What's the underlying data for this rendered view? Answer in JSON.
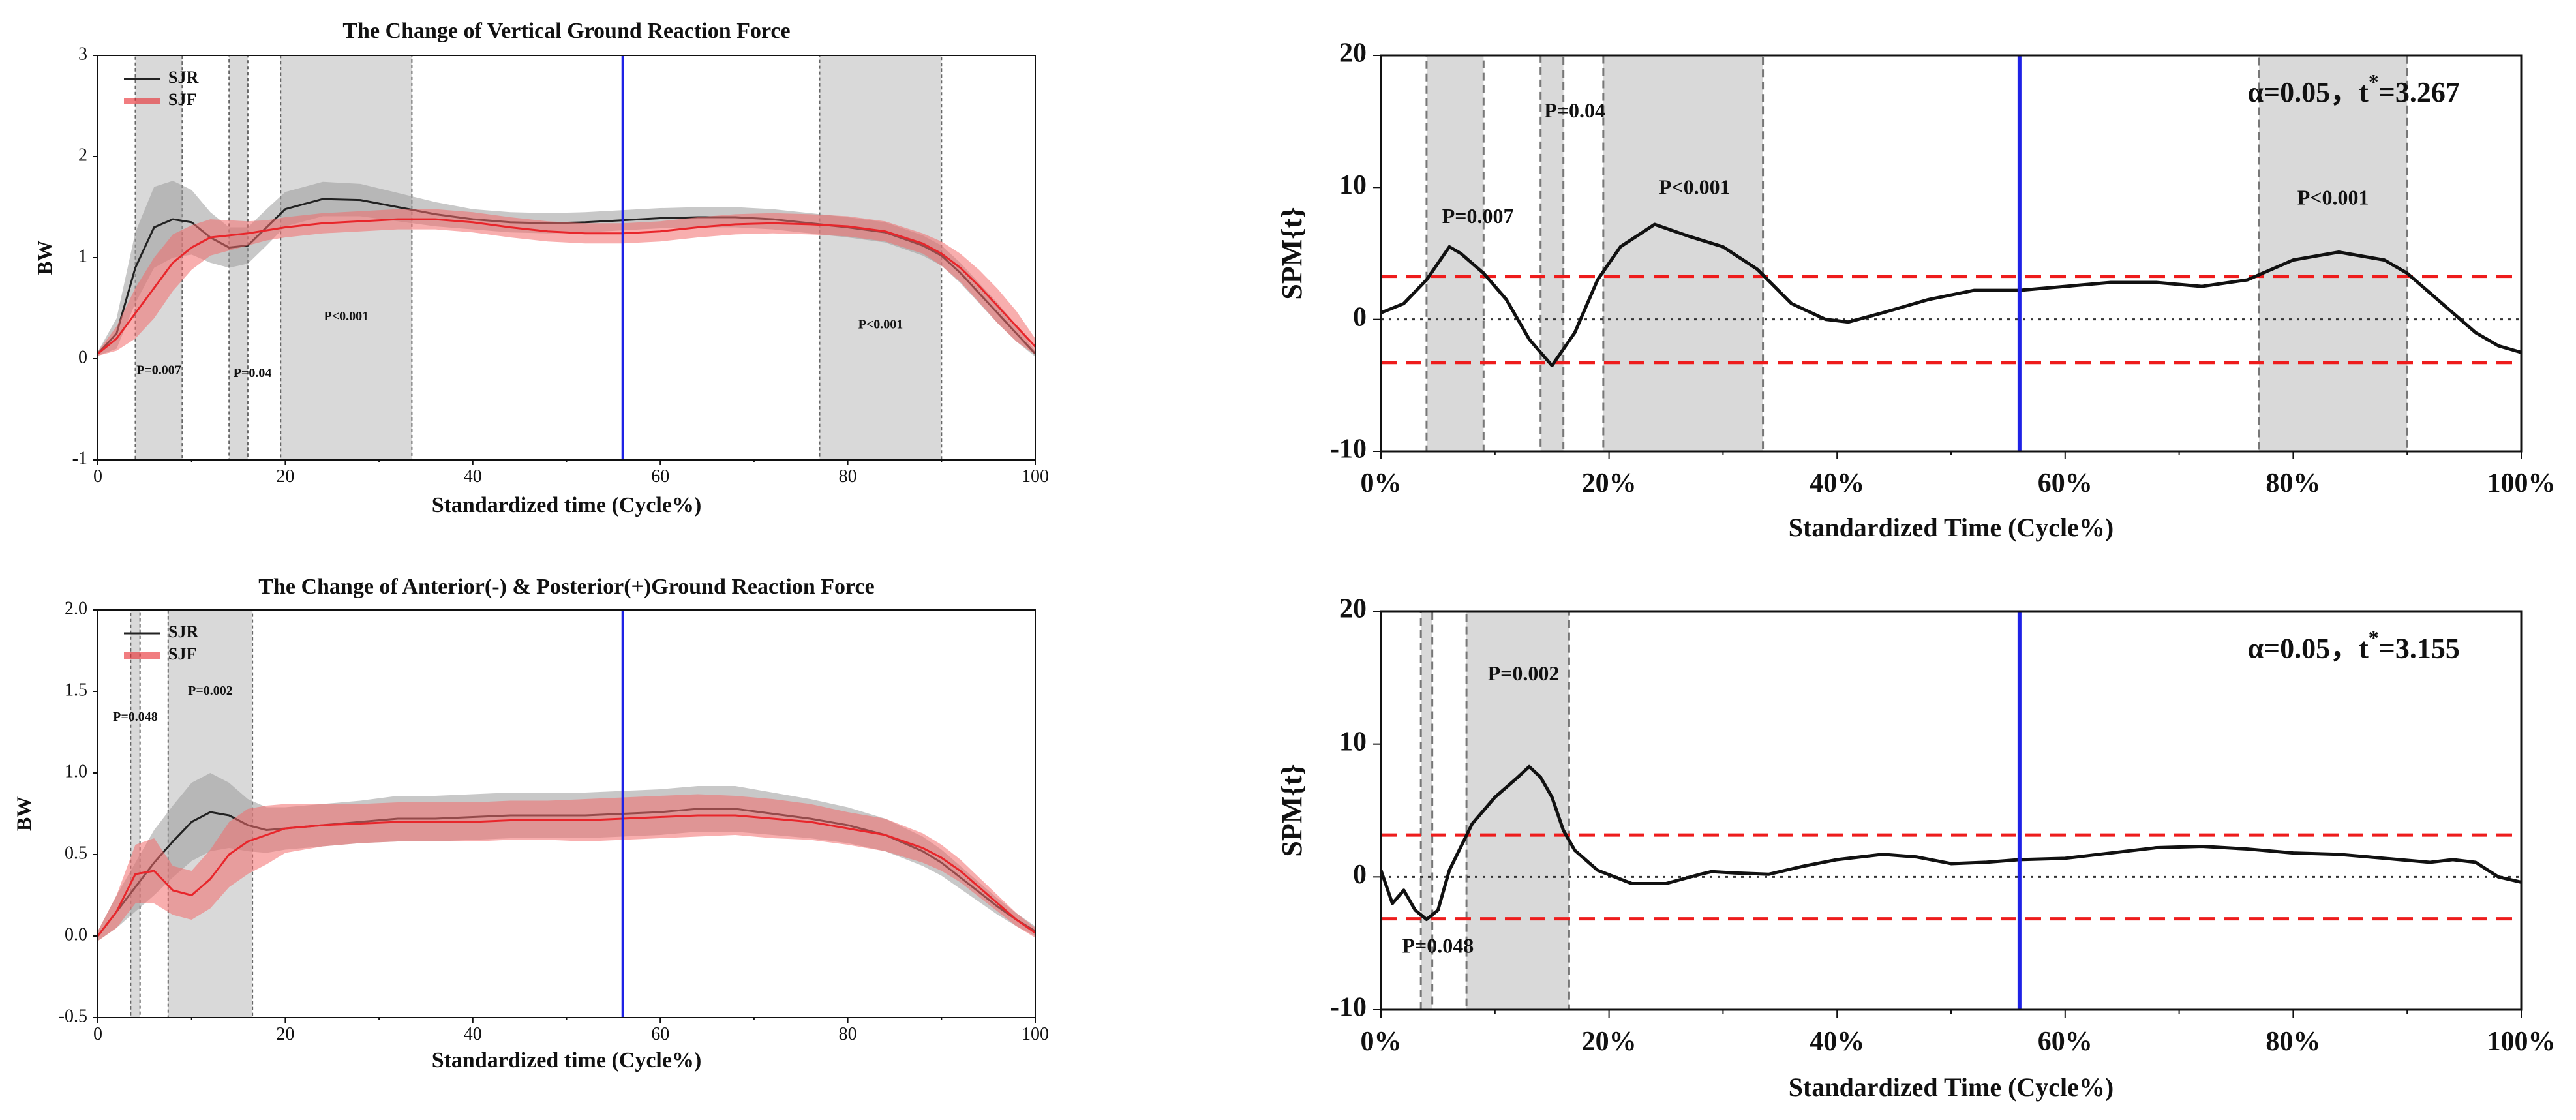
{
  "colors": {
    "sjr": "#222222",
    "sjr_band": "#9a9a9a",
    "sjf": "#e8262b",
    "sjf_band": "#f26b6b",
    "region": "#d9d9d9",
    "marker": "#1e22e6",
    "threshold": "#ee1c1c",
    "spm": "#111111"
  },
  "chart_data": [
    {
      "id": "vgrf",
      "type": "line",
      "title": "The Change of Vertical  Ground Reaction Force",
      "xlabel": "Standardized time (Cycle%)",
      "ylabel": "BW",
      "xlim": [
        0,
        100
      ],
      "ylim": [
        -1,
        3
      ],
      "xticks": [
        0,
        20,
        40,
        60,
        80,
        100
      ],
      "xtick_labels": [
        "0",
        "20",
        "40",
        "60",
        "80",
        "100"
      ],
      "yticks": [
        -1,
        0,
        1,
        2,
        3
      ],
      "ytick_labels": [
        "-1",
        "0",
        "1",
        "2",
        "3"
      ],
      "legend": {
        "position": "top-left",
        "entries": [
          "SJR",
          "SJF"
        ]
      },
      "marker_x": 56,
      "regions": [
        {
          "x0": 4,
          "x1": 9,
          "label": "P=0.007",
          "label_x": 6.5,
          "label_y": -0.15
        },
        {
          "x0": 14,
          "x1": 16,
          "label": "P=0.04",
          "label_x": 16.5,
          "label_y": -0.18
        },
        {
          "x0": 19.5,
          "x1": 33.5,
          "label": "P<0.001",
          "label_x": 26.5,
          "label_y": 0.38
        },
        {
          "x0": 77,
          "x1": 90,
          "label": "P<0.001",
          "label_x": 83.5,
          "label_y": 0.3
        }
      ],
      "series": [
        {
          "name": "SJR",
          "x": [
            0,
            2,
            4,
            6,
            8,
            10,
            12,
            14,
            16,
            18,
            20,
            24,
            28,
            32,
            36,
            40,
            44,
            48,
            52,
            56,
            60,
            64,
            68,
            72,
            76,
            80,
            84,
            88,
            90,
            92,
            94,
            96,
            98,
            100
          ],
          "mean": [
            0.05,
            0.25,
            0.9,
            1.3,
            1.38,
            1.35,
            1.2,
            1.1,
            1.12,
            1.3,
            1.48,
            1.58,
            1.57,
            1.5,
            1.43,
            1.38,
            1.35,
            1.34,
            1.35,
            1.37,
            1.39,
            1.4,
            1.4,
            1.38,
            1.34,
            1.3,
            1.25,
            1.12,
            1.02,
            0.85,
            0.65,
            0.45,
            0.25,
            0.05
          ],
          "sd": [
            0.02,
            0.15,
            0.35,
            0.4,
            0.38,
            0.32,
            0.25,
            0.2,
            0.18,
            0.18,
            0.17,
            0.17,
            0.16,
            0.14,
            0.12,
            0.1,
            0.1,
            0.1,
            0.1,
            0.1,
            0.1,
            0.1,
            0.1,
            0.1,
            0.1,
            0.1,
            0.1,
            0.1,
            0.1,
            0.1,
            0.1,
            0.1,
            0.08,
            0.03
          ]
        },
        {
          "name": "SJF",
          "x": [
            0,
            2,
            4,
            6,
            8,
            10,
            12,
            14,
            16,
            18,
            20,
            24,
            28,
            32,
            36,
            40,
            44,
            48,
            52,
            56,
            60,
            64,
            68,
            72,
            76,
            80,
            84,
            88,
            90,
            92,
            94,
            96,
            98,
            100
          ],
          "mean": [
            0.05,
            0.2,
            0.45,
            0.7,
            0.95,
            1.1,
            1.2,
            1.22,
            1.24,
            1.27,
            1.3,
            1.34,
            1.36,
            1.38,
            1.38,
            1.35,
            1.3,
            1.26,
            1.24,
            1.24,
            1.26,
            1.3,
            1.33,
            1.34,
            1.33,
            1.31,
            1.26,
            1.14,
            1.04,
            0.9,
            0.72,
            0.52,
            0.32,
            0.12
          ],
          "sd": [
            0.02,
            0.12,
            0.25,
            0.3,
            0.28,
            0.22,
            0.18,
            0.15,
            0.12,
            0.1,
            0.1,
            0.1,
            0.1,
            0.1,
            0.1,
            0.1,
            0.1,
            0.1,
            0.1,
            0.1,
            0.1,
            0.1,
            0.1,
            0.1,
            0.1,
            0.1,
            0.1,
            0.1,
            0.12,
            0.14,
            0.16,
            0.17,
            0.15,
            0.08
          ]
        }
      ]
    },
    {
      "id": "vgrf_spm",
      "type": "line",
      "title": "",
      "xlabel": "Standardized Time (Cycle%)",
      "ylabel": "SPM{t}",
      "xlim": [
        0,
        100
      ],
      "ylim": [
        -10,
        20
      ],
      "xticks": [
        0,
        20,
        40,
        60,
        80,
        100
      ],
      "xtick_labels": [
        "0%",
        "20%",
        "40%",
        "60%",
        "80%",
        "100%"
      ],
      "yticks": [
        -10,
        0,
        10,
        20
      ],
      "ytick_labels": [
        "-10",
        "0",
        "10",
        "20"
      ],
      "marker_x": 56,
      "threshold": 3.267,
      "annotation": {
        "prefix": "α=0.05，t",
        "sup": "*",
        "suffix": "=3.267",
        "x": 76,
        "y": 16.5
      },
      "regions": [
        {
          "x0": 4,
          "x1": 9,
          "label": "P=0.007",
          "label_x": 8.5,
          "label_y": 7.3
        },
        {
          "x0": 14,
          "x1": 16,
          "label": "P=0.04",
          "label_x": 17,
          "label_y": 15.3
        },
        {
          "x0": 19.5,
          "x1": 33.5,
          "label": "P<0.001",
          "label_x": 27.5,
          "label_y": 9.5
        },
        {
          "x0": 77,
          "x1": 90,
          "label": "P<0.001",
          "label_x": 83.5,
          "label_y": 8.7
        }
      ],
      "series": [
        {
          "name": "SPM{t}",
          "x": [
            0,
            2,
            4,
            6,
            7,
            9,
            11,
            13,
            15,
            17,
            19,
            21,
            24,
            27,
            30,
            33,
            36,
            39,
            41,
            44,
            48,
            52,
            56,
            60,
            64,
            68,
            72,
            76,
            80,
            84,
            88,
            90,
            92,
            94,
            96,
            98,
            100
          ],
          "y": [
            0.5,
            1.2,
            3.0,
            5.5,
            5.0,
            3.5,
            1.5,
            -1.5,
            -3.5,
            -1.0,
            3.0,
            5.5,
            7.2,
            6.3,
            5.5,
            3.8,
            1.2,
            0.0,
            -0.2,
            0.5,
            1.5,
            2.2,
            2.2,
            2.5,
            2.8,
            2.8,
            2.5,
            3.0,
            4.5,
            5.1,
            4.5,
            3.5,
            2.0,
            0.5,
            -1.0,
            -2.0,
            -2.5
          ]
        }
      ]
    },
    {
      "id": "apgrf",
      "type": "line",
      "title": "The Change of Anterior(-) & Posterior(+)Ground Reaction Force",
      "xlabel": "Standardized time (Cycle%)",
      "ylabel": "BW",
      "xlim": [
        0,
        100
      ],
      "ylim": [
        -0.5,
        2.0
      ],
      "xticks": [
        0,
        20,
        40,
        60,
        80,
        100
      ],
      "xtick_labels": [
        "0",
        "20",
        "40",
        "60",
        "80",
        "100"
      ],
      "yticks": [
        -0.5,
        0.0,
        0.5,
        1.0,
        1.5,
        2.0
      ],
      "ytick_labels": [
        "-0.5",
        "0.0",
        "0.5",
        "1.0",
        "1.5",
        "2.0"
      ],
      "legend": {
        "position": "top-left",
        "entries": [
          "SJR",
          "SJF"
        ]
      },
      "marker_x": 56,
      "regions": [
        {
          "x0": 3.5,
          "x1": 4.5,
          "label": "P=0.048",
          "label_x": 4,
          "label_y": 1.32
        },
        {
          "x0": 7.5,
          "x1": 16.5,
          "label": "P=0.002",
          "label_x": 12,
          "label_y": 1.48
        }
      ],
      "series": [
        {
          "name": "SJR",
          "x": [
            0,
            2,
            4,
            6,
            8,
            10,
            12,
            14,
            16,
            18,
            20,
            24,
            28,
            32,
            36,
            40,
            44,
            48,
            52,
            56,
            60,
            64,
            68,
            72,
            76,
            80,
            84,
            88,
            90,
            92,
            94,
            96,
            98,
            100
          ],
          "mean": [
            0.0,
            0.15,
            0.3,
            0.45,
            0.58,
            0.7,
            0.76,
            0.74,
            0.68,
            0.65,
            0.66,
            0.68,
            0.7,
            0.72,
            0.72,
            0.73,
            0.74,
            0.74,
            0.74,
            0.75,
            0.76,
            0.78,
            0.78,
            0.75,
            0.72,
            0.68,
            0.62,
            0.52,
            0.45,
            0.36,
            0.27,
            0.18,
            0.1,
            0.03
          ],
          "sd": [
            0.03,
            0.1,
            0.15,
            0.2,
            0.22,
            0.24,
            0.24,
            0.2,
            0.16,
            0.14,
            0.13,
            0.13,
            0.13,
            0.14,
            0.14,
            0.14,
            0.14,
            0.14,
            0.14,
            0.14,
            0.14,
            0.14,
            0.14,
            0.13,
            0.12,
            0.11,
            0.1,
            0.09,
            0.08,
            0.07,
            0.06,
            0.05,
            0.04,
            0.03
          ]
        },
        {
          "name": "SJF",
          "x": [
            0,
            2,
            4,
            6,
            8,
            10,
            12,
            14,
            16,
            18,
            20,
            24,
            28,
            32,
            36,
            40,
            44,
            48,
            52,
            56,
            60,
            64,
            68,
            72,
            76,
            80,
            84,
            88,
            90,
            92,
            94,
            96,
            98,
            100
          ],
          "mean": [
            0.0,
            0.15,
            0.38,
            0.4,
            0.28,
            0.25,
            0.35,
            0.5,
            0.58,
            0.62,
            0.66,
            0.68,
            0.69,
            0.7,
            0.7,
            0.7,
            0.71,
            0.71,
            0.71,
            0.72,
            0.73,
            0.74,
            0.74,
            0.72,
            0.7,
            0.66,
            0.62,
            0.54,
            0.48,
            0.4,
            0.3,
            0.2,
            0.1,
            0.02
          ],
          "sd": [
            0.03,
            0.1,
            0.18,
            0.2,
            0.15,
            0.15,
            0.18,
            0.2,
            0.2,
            0.18,
            0.15,
            0.13,
            0.12,
            0.12,
            0.12,
            0.12,
            0.12,
            0.12,
            0.13,
            0.13,
            0.13,
            0.13,
            0.12,
            0.12,
            0.11,
            0.1,
            0.1,
            0.09,
            0.08,
            0.07,
            0.06,
            0.05,
            0.04,
            0.03
          ]
        }
      ]
    },
    {
      "id": "apgrf_spm",
      "type": "line",
      "title": "",
      "xlabel": "Standardized Time (Cycle%)",
      "ylabel": "SPM{t}",
      "xlim": [
        0,
        100
      ],
      "ylim": [
        -10,
        20
      ],
      "xticks": [
        0,
        20,
        40,
        60,
        80,
        100
      ],
      "xtick_labels": [
        "0%",
        "20%",
        "40%",
        "60%",
        "80%",
        "100%"
      ],
      "yticks": [
        -10,
        0,
        10,
        20
      ],
      "ytick_labels": [
        "-10",
        "0",
        "10",
        "20"
      ],
      "marker_x": 56,
      "threshold": 3.155,
      "annotation": {
        "prefix": "α=0.05，t",
        "sup": "*",
        "suffix": "=3.155",
        "x": 76,
        "y": 16.5
      },
      "regions": [
        {
          "x0": 3.5,
          "x1": 4.5,
          "label": "P=0.048",
          "label_x": 5,
          "label_y": -5.7
        },
        {
          "x0": 7.5,
          "x1": 16.5,
          "label": "P=0.002",
          "label_x": 12.5,
          "label_y": 14.8
        }
      ],
      "series": [
        {
          "name": "SPM{t}",
          "x": [
            0,
            1,
            2,
            3,
            4,
            5,
            6,
            8,
            10,
            12,
            13,
            14,
            15,
            16,
            17,
            19,
            22,
            25,
            28,
            29,
            31,
            34,
            37,
            40,
            44,
            47,
            50,
            53,
            56,
            60,
            64,
            68,
            72,
            76,
            80,
            84,
            88,
            92,
            94,
            96,
            98,
            100
          ],
          "y": [
            0.5,
            -2.0,
            -1.0,
            -2.5,
            -3.2,
            -2.5,
            0.5,
            4.0,
            6.0,
            7.5,
            8.3,
            7.5,
            6.0,
            3.5,
            2.0,
            0.5,
            -0.5,
            -0.5,
            0.2,
            0.4,
            0.3,
            0.2,
            0.8,
            1.3,
            1.7,
            1.5,
            1.0,
            1.1,
            1.3,
            1.4,
            1.8,
            2.2,
            2.3,
            2.1,
            1.8,
            1.7,
            1.4,
            1.1,
            1.3,
            1.1,
            0.0,
            -0.4
          ]
        }
      ]
    }
  ]
}
